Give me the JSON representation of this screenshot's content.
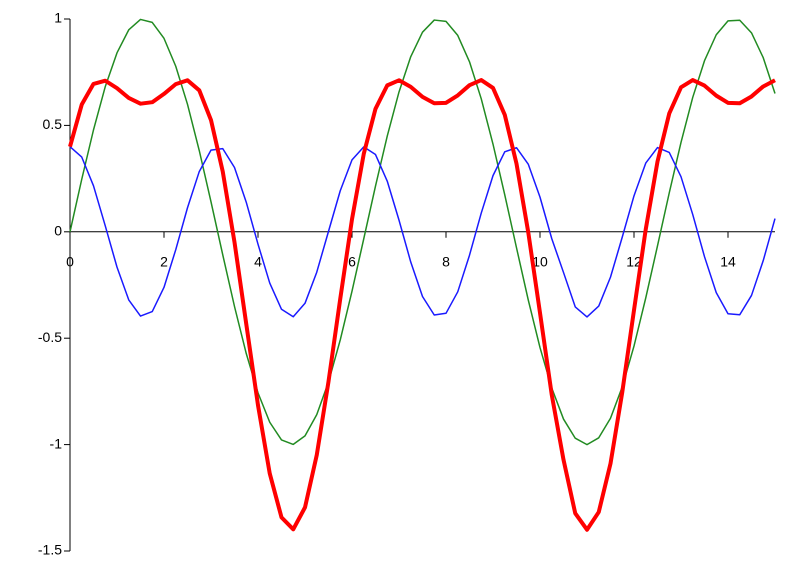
{
  "chart_data": {
    "type": "line",
    "x": [
      0,
      0.25,
      0.5,
      0.75,
      1,
      1.25,
      1.5,
      1.75,
      2,
      2.25,
      2.5,
      2.75,
      3,
      3.25,
      3.5,
      3.75,
      4,
      4.25,
      4.5,
      4.75,
      5,
      5.25,
      5.5,
      5.75,
      6,
      6.25,
      6.5,
      6.75,
      7,
      7.25,
      7.5,
      7.75,
      8,
      8.25,
      8.5,
      8.75,
      9,
      9.25,
      9.5,
      9.75,
      10,
      10.25,
      10.5,
      10.75,
      11,
      11.25,
      11.5,
      11.75,
      12,
      12.25,
      12.5,
      12.75,
      13,
      13.25,
      13.5,
      13.75,
      14,
      14.25,
      14.5,
      14.75,
      15
    ],
    "series": [
      {
        "color": "#228b22",
        "width": 1.5,
        "values": [
          0,
          0.247,
          0.479,
          0.682,
          0.841,
          0.949,
          0.998,
          0.984,
          0.909,
          0.778,
          0.599,
          0.382,
          0.141,
          -0.108,
          -0.351,
          -0.572,
          -0.757,
          -0.895,
          -0.978,
          -0.999,
          -0.959,
          -0.859,
          -0.706,
          -0.508,
          -0.279,
          -0.033,
          0.215,
          0.45,
          0.657,
          0.823,
          0.938,
          0.995,
          0.989,
          0.923,
          0.799,
          0.625,
          0.412,
          0.174,
          -0.075,
          -0.32,
          -0.544,
          -0.734,
          -0.88,
          -0.97,
          -1,
          -0.968,
          -0.876,
          -0.729,
          -0.537,
          -0.311,
          -0.066,
          0.183,
          0.42,
          0.632,
          0.804,
          0.926,
          0.991,
          0.994,
          0.935,
          0.818,
          0.65
        ]
      },
      {
        "color": "#1a1aff",
        "width": 1.5,
        "values": [
          0.4,
          0.351,
          0.216,
          0.028,
          -0.166,
          -0.32,
          -0.396,
          -0.375,
          -0.261,
          -0.084,
          0.113,
          0.283,
          0.384,
          0.391,
          0.302,
          0.139,
          -0.058,
          -0.241,
          -0.364,
          -0.399,
          -0.336,
          -0.19,
          0.002,
          0.193,
          0.338,
          0.399,
          0.363,
          0.238,
          0.055,
          -0.142,
          -0.304,
          -0.391,
          -0.383,
          -0.282,
          -0.11,
          0.088,
          0.264,
          0.376,
          0.395,
          0.318,
          0.163,
          -0.032,
          -0.191,
          -0.353,
          -0.4,
          -0.349,
          -0.213,
          -0.025,
          0.169,
          0.323,
          0.396,
          0.373,
          0.259,
          0.081,
          -0.117,
          -0.286,
          -0.385,
          -0.39,
          -0.299,
          -0.135,
          0.062
        ]
      },
      {
        "color": "#ff0000",
        "width": 4,
        "values": [
          0.4,
          0.598,
          0.695,
          0.71,
          0.675,
          0.629,
          0.602,
          0.609,
          0.648,
          0.694,
          0.712,
          0.665,
          0.525,
          0.283,
          -0.049,
          -0.433,
          -0.815,
          -1.136,
          -1.342,
          -1.398,
          -1.295,
          -1.049,
          -0.704,
          -0.315,
          0.059,
          0.366,
          0.578,
          0.688,
          0.712,
          0.681,
          0.634,
          0.604,
          0.606,
          0.641,
          0.689,
          0.713,
          0.676,
          0.55,
          0.32,
          -0.002,
          -0.381,
          -0.766,
          -1.071,
          -1.323,
          -1.4,
          -1.317,
          -1.089,
          -0.754,
          -0.368,
          0.012,
          0.33,
          0.556,
          0.679,
          0.713,
          0.687,
          0.64,
          0.606,
          0.604,
          0.636,
          0.683,
          0.712
        ]
      }
    ],
    "xlim": [
      0,
      15
    ],
    "xticks": [
      0,
      2,
      4,
      6,
      8,
      10,
      12,
      14
    ],
    "ylim": [
      -1.5,
      1
    ],
    "yticks": [
      -1.5,
      -1,
      -0.5,
      0,
      0.5,
      1
    ]
  }
}
